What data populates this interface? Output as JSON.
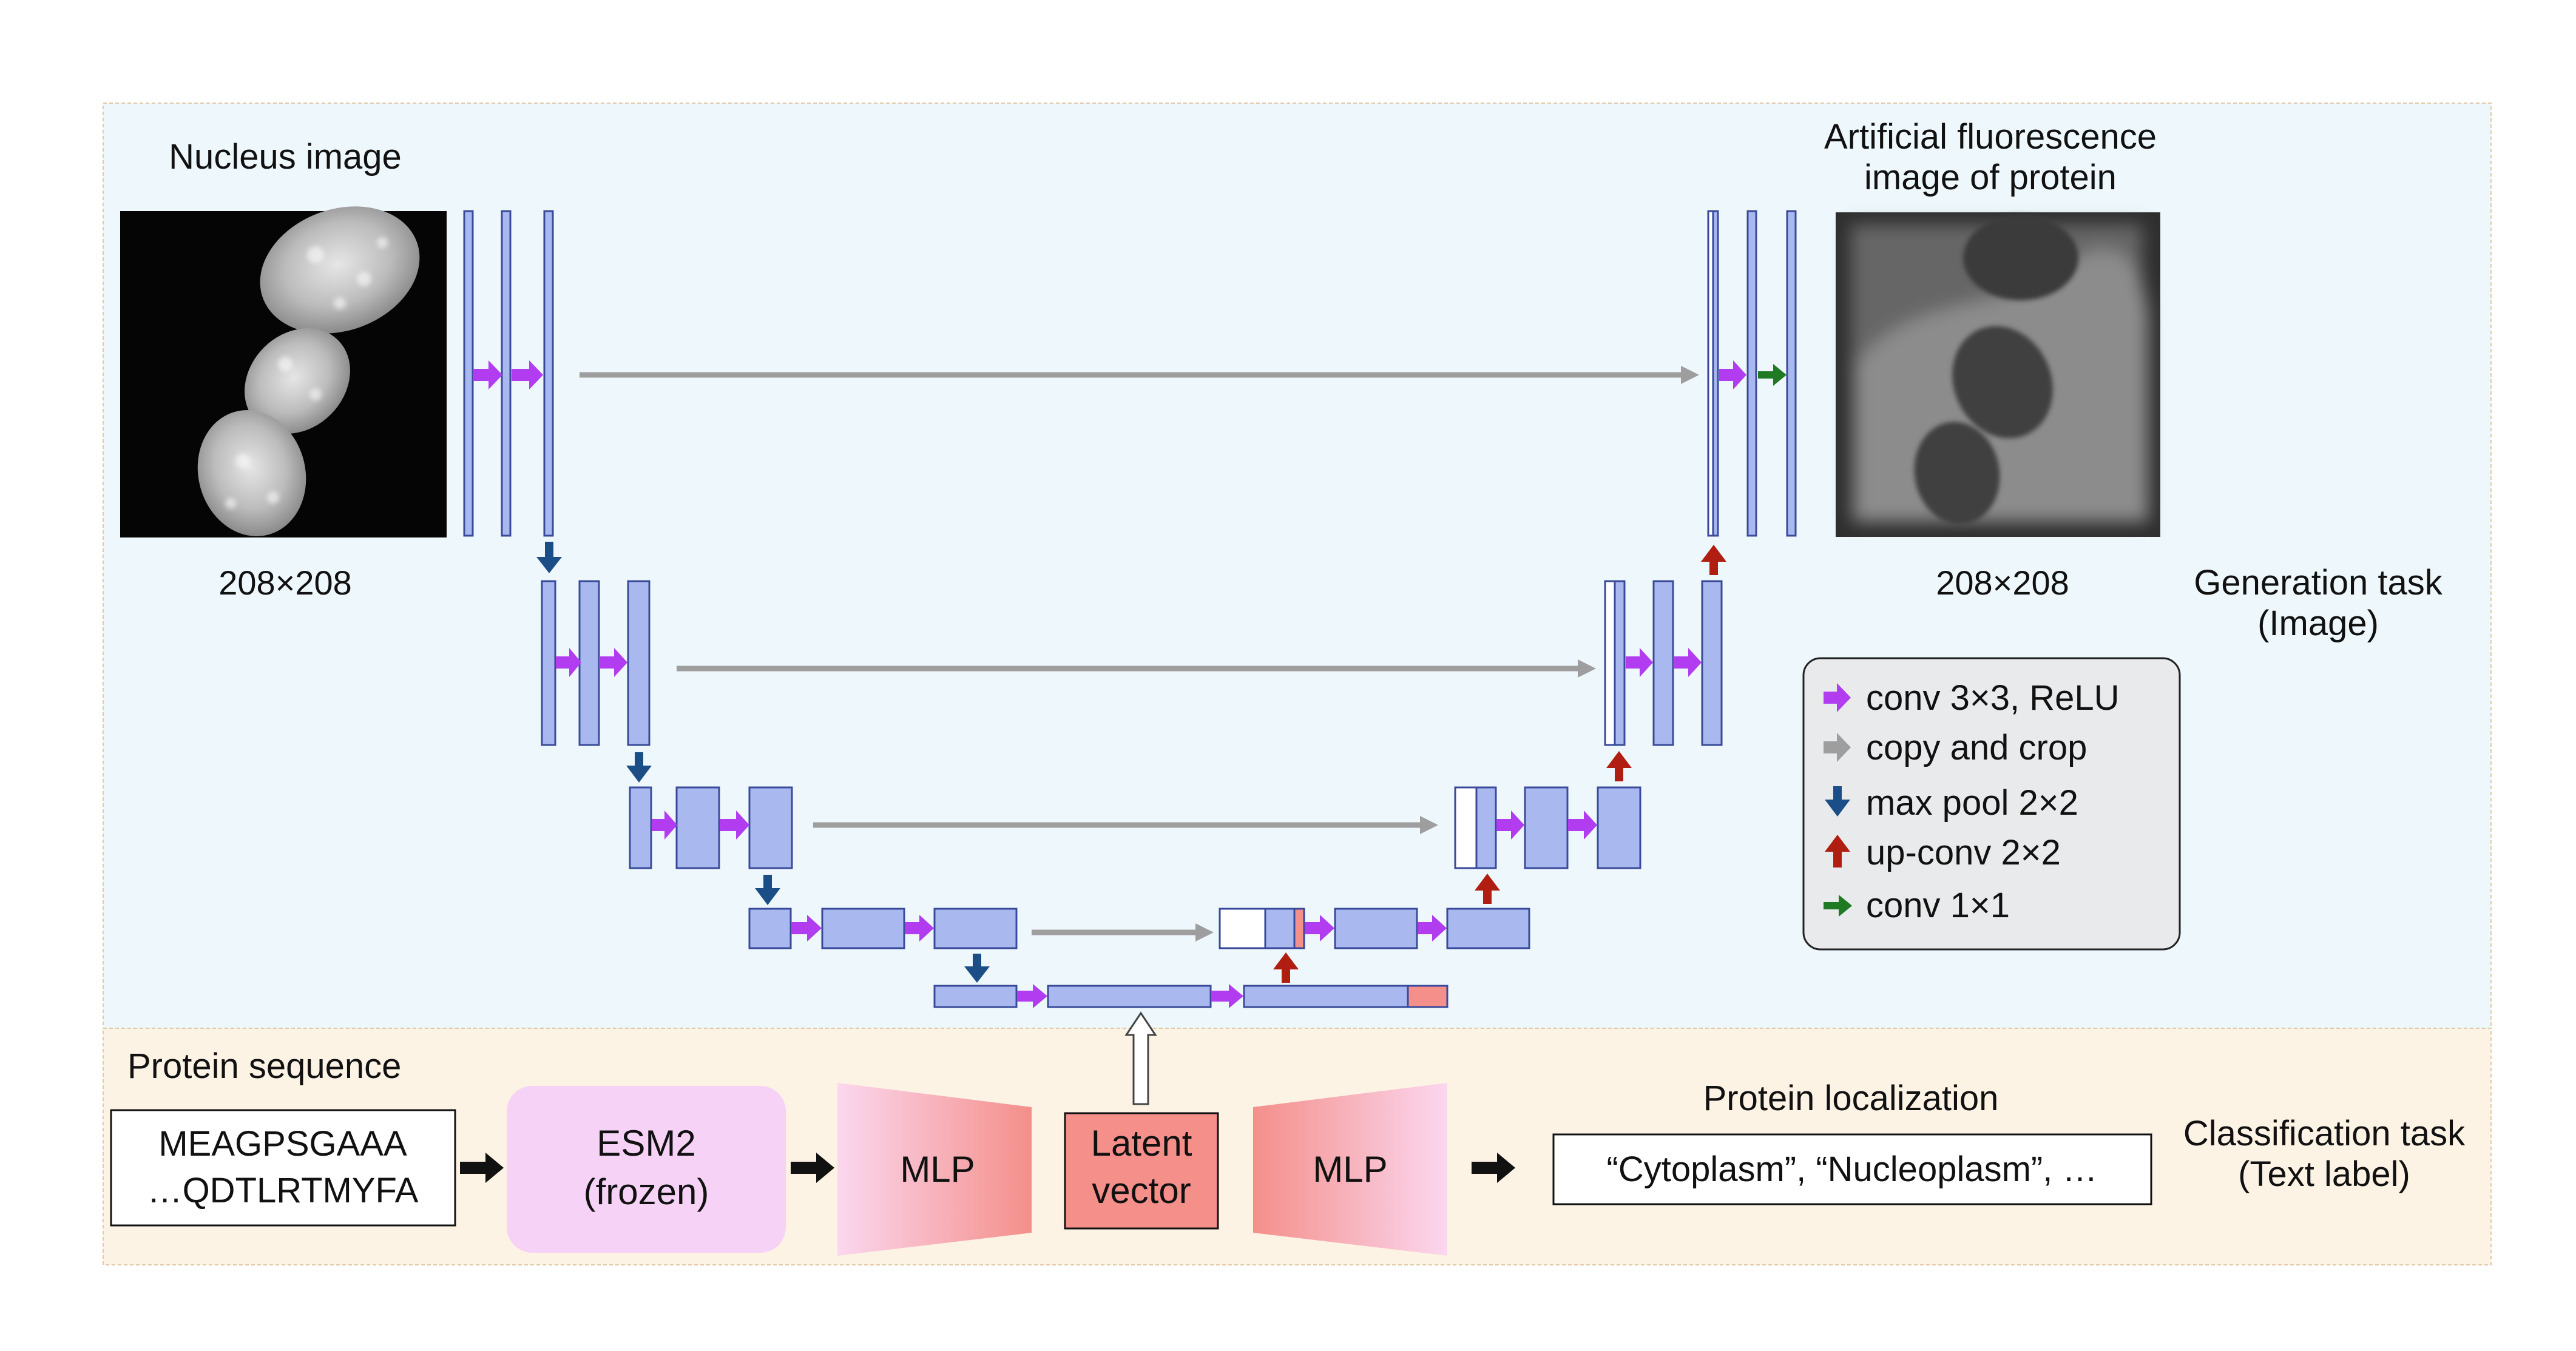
{
  "colors": {
    "top_panel_bg": "#eef8fc",
    "bottom_panel_bg": "#fdf3e5",
    "panel_border": "#e2c9a8",
    "feature_map": "#a9b9f0",
    "feature_map_stroke": "#3a4a9a",
    "conv_arrow": "#b13cf0",
    "copy_arrow": "#9e9e9e",
    "pool_arrow": "#1b4e86",
    "upconv_arrow": "#b01e12",
    "conv1x1_arrow": "#1f7a23",
    "latent_fill": "#f48f8a",
    "esm_fill": "#f6d2f6",
    "legend_bg": "#e9eaec"
  },
  "input_image": {
    "caption": "Nucleus image",
    "size_label": "208×208"
  },
  "output_image": {
    "caption_line1": "Artificial fluorescence",
    "caption_line2": "image of protein",
    "size_label": "208×208"
  },
  "generation_task": {
    "line1": "Generation task",
    "line2": "(Image)"
  },
  "legend": {
    "items": [
      {
        "label": "conv 3×3, ReLU",
        "color": "#b13cf0",
        "icon": "right-arrow-icon"
      },
      {
        "label": "copy and crop",
        "color": "#1a1a1a",
        "icon": "right-arrow-icon"
      },
      {
        "label": "max pool 2×2",
        "color": "#1b4e86",
        "icon": "down-arrow-icon"
      },
      {
        "label": "up-conv 2×2",
        "color": "#b01e12",
        "icon": "up-arrow-icon"
      },
      {
        "label": "conv 1×1",
        "color": "#1f7a23",
        "icon": "right-arrow-icon"
      }
    ]
  },
  "bottom": {
    "sequence_title": "Protein sequence",
    "sequence_line1": "MEAGPSGAAA",
    "sequence_line2": "…QDTLRTMYFA",
    "esm_line1": "ESM2",
    "esm_line2": "(frozen)",
    "mlp_in": "MLP",
    "latent_line1": "Latent",
    "latent_line2": "vector",
    "mlp_out": "MLP",
    "localization_title": "Protein localization",
    "localization_value": "“Cytoplasm”, “Nucleoplasm”, …",
    "classification_line1": "Classification task",
    "classification_line2": "(Text label)"
  }
}
